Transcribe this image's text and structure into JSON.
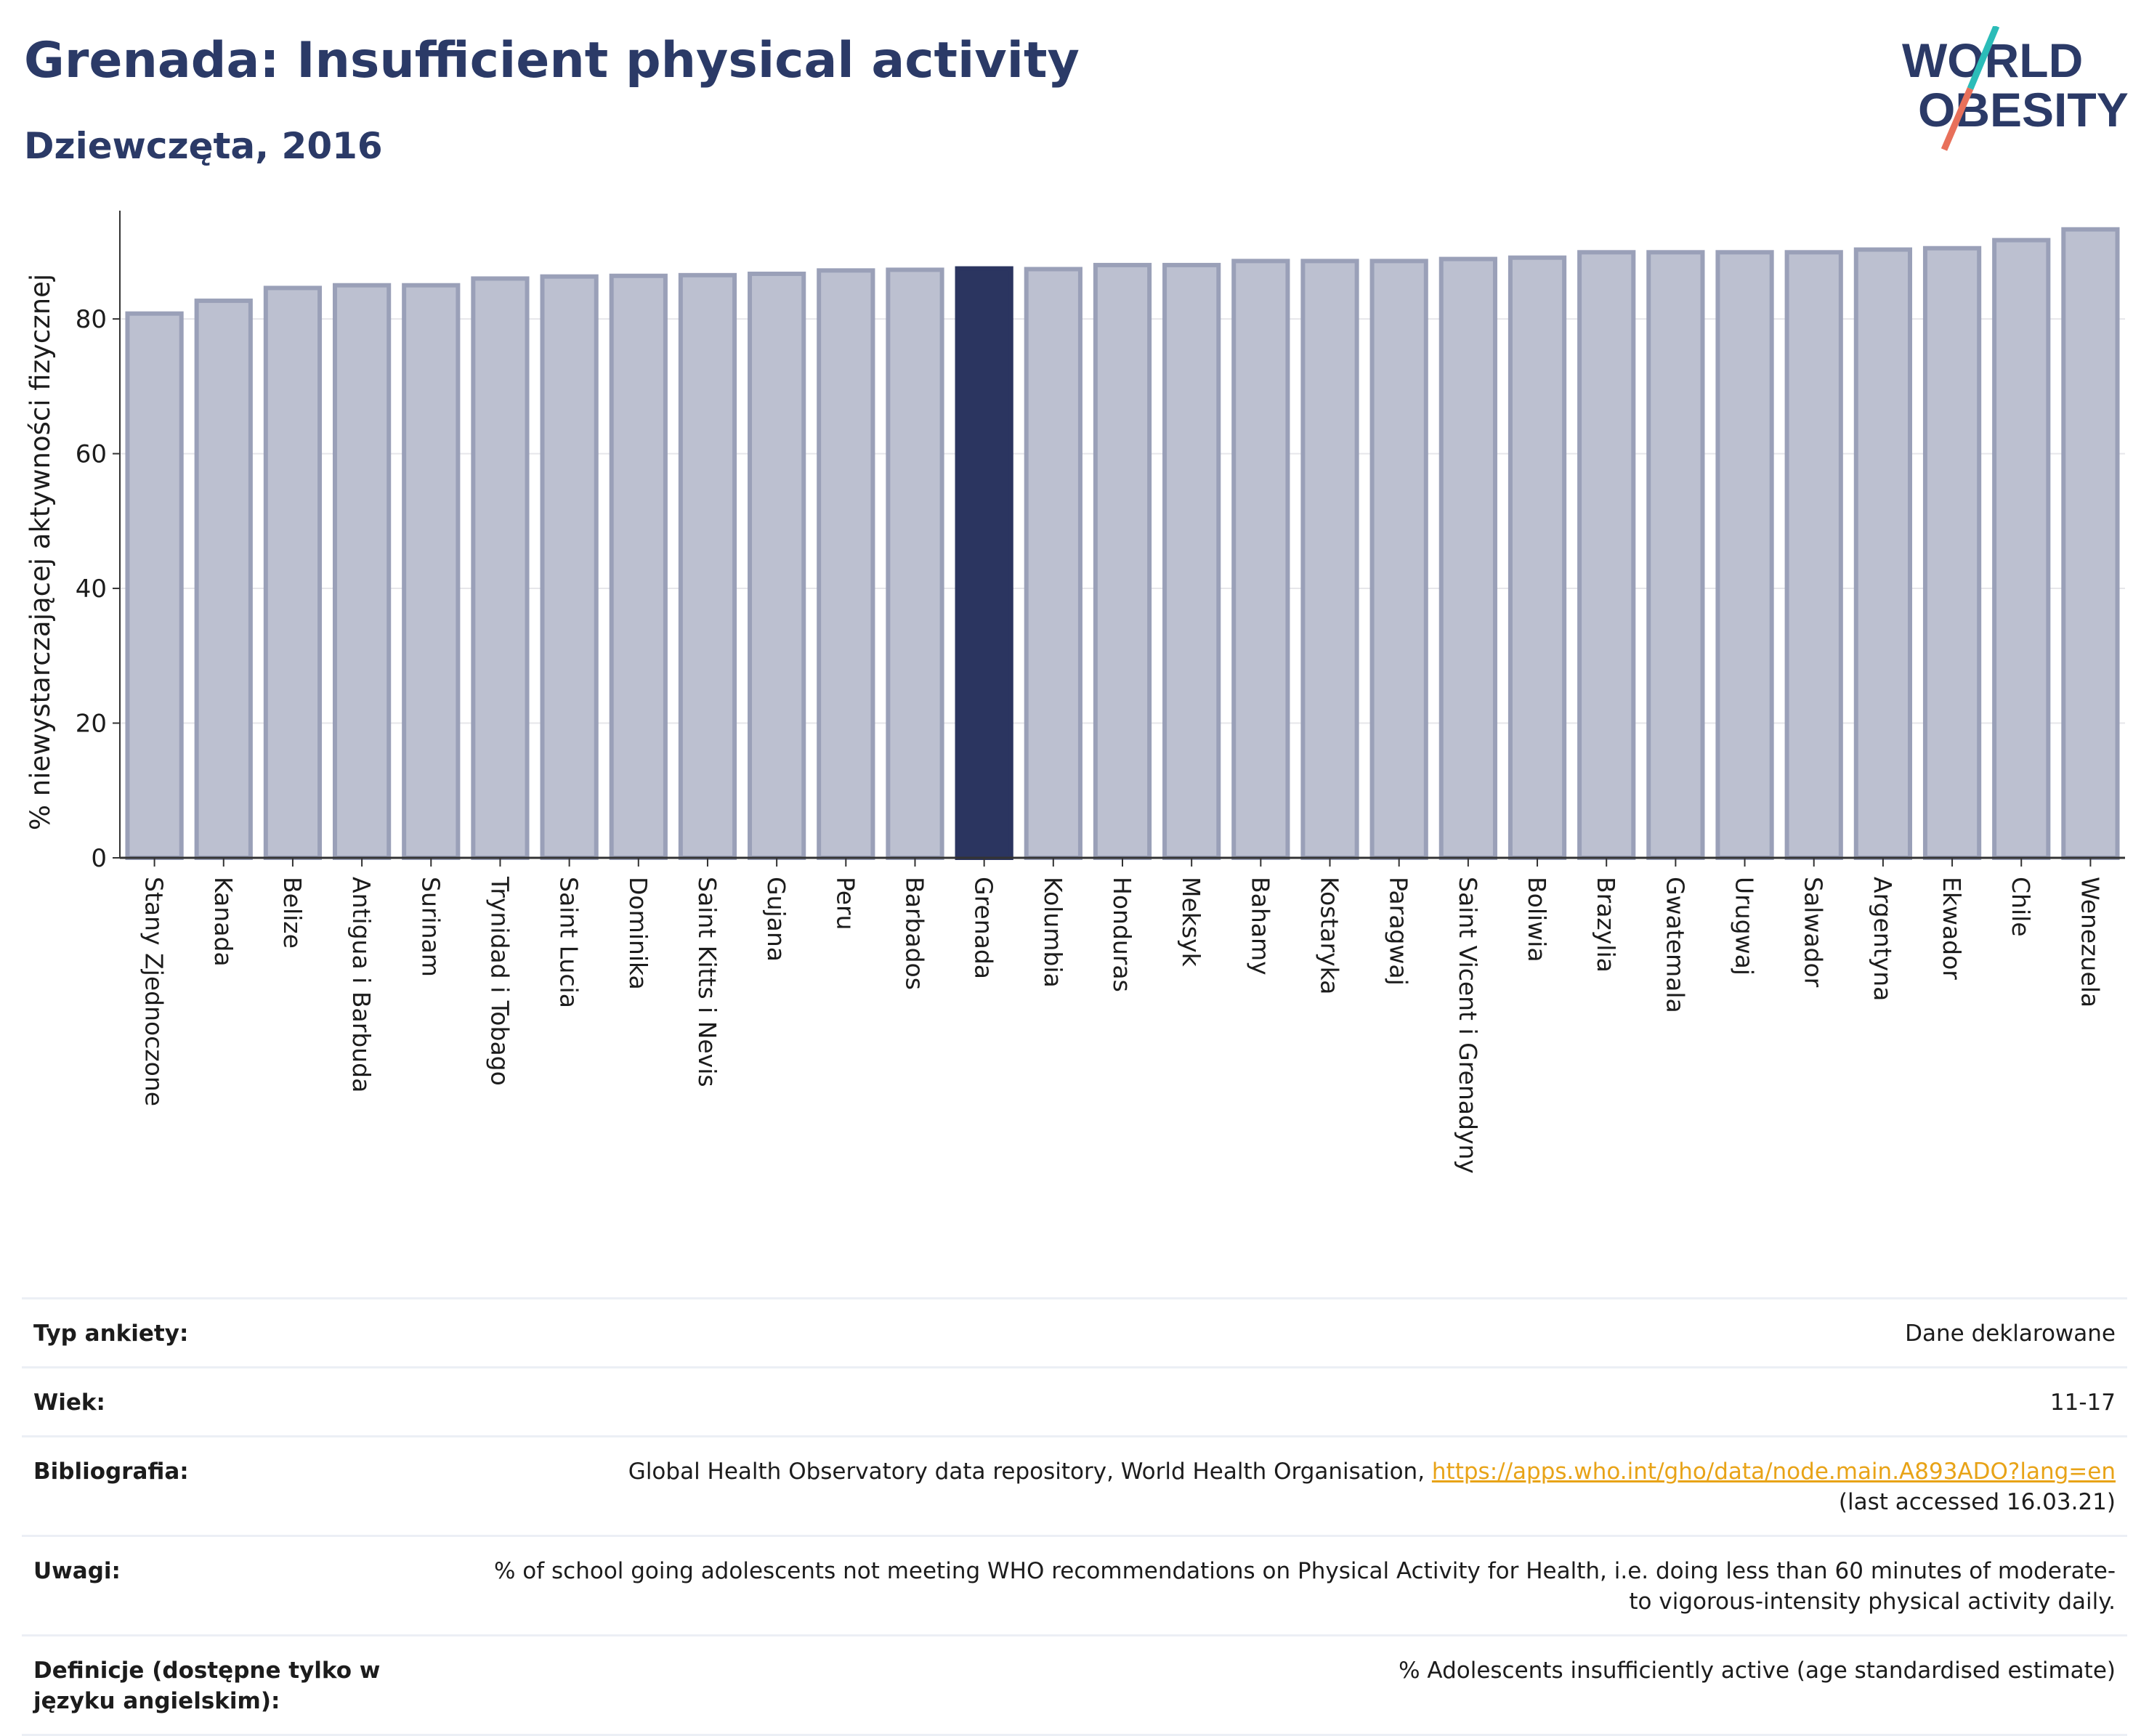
{
  "header": {
    "title": "Grenada: Insufficient physical activity",
    "subtitle": "Dziewczęta, 2016"
  },
  "logo": {
    "line1": "WORLD",
    "line2": "OBESITY",
    "accent_teal": "#2bbcb8",
    "accent_coral": "#e8705a",
    "text_color": "#2b3a67"
  },
  "colors": {
    "bar": "#bcc0d0",
    "bar_border": "#9aa0b8",
    "highlight": "#2b3560",
    "axis": "#333333",
    "grid": "#e6e6ea"
  },
  "chart_data": {
    "type": "bar",
    "title": "Grenada: Insufficient physical activity",
    "subtitle": "Dziewczęta, 2016",
    "xlabel": "",
    "ylabel": "% niewystarczającej aktywności fizycznej",
    "ylim": [
      0,
      95
    ],
    "yticks": [
      0,
      20,
      40,
      60,
      80
    ],
    "grid": true,
    "highlight": "Grenada",
    "categories": [
      "Stany Zjednoczone",
      "Kanada",
      "Belize",
      "Antigua i Barbuda",
      "Surinam",
      "Trynidad i Tobago",
      "Saint Lucia",
      "Dominika",
      "Saint Kitts i Nevis",
      "Gujana",
      "Peru",
      "Barbados",
      "Grenada",
      "Kolumbia",
      "Honduras",
      "Meksyk",
      "Bahamy",
      "Kostaryka",
      "Paragwaj",
      "Saint Vicent i Grenadyny",
      "Boliwia",
      "Brazylia",
      "Gwatemala",
      "Urugwaj",
      "Salwador",
      "Argentyna",
      "Ekwador",
      "Chile",
      "Wenezuela"
    ],
    "values": [
      80.8,
      82.7,
      84.6,
      85.0,
      85.0,
      86.0,
      86.3,
      86.4,
      86.5,
      86.7,
      87.2,
      87.3,
      87.5,
      87.4,
      88.0,
      88.0,
      88.6,
      88.6,
      88.6,
      88.9,
      89.1,
      89.9,
      89.9,
      89.9,
      89.9,
      90.3,
      90.5,
      91.7,
      93.3
    ]
  },
  "info": {
    "rows": [
      {
        "key": "Typ ankiety:",
        "value": "Dane deklarowane"
      },
      {
        "key": "Wiek:",
        "value": "11-17"
      },
      {
        "key": "Bibliografia:",
        "value": "Global Health Observatory data repository, World Health Organisation, ",
        "link": "https://apps.who.int/gho/data/node.main.A893ADO?lang=en",
        "value2": "(last accessed 16.03.21)"
      },
      {
        "key": "Uwagi:",
        "value": "% of school going adolescents not meeting WHO recommendations on Physical Activity for Health, i.e. doing less than 60 minutes of moderate- to vigorous-intensity physical activity daily."
      },
      {
        "key": "Definicje (dostępne tylko w języku angielskim):",
        "value": "% Adolescents insufficiently active (age standardised estimate)"
      }
    ]
  }
}
